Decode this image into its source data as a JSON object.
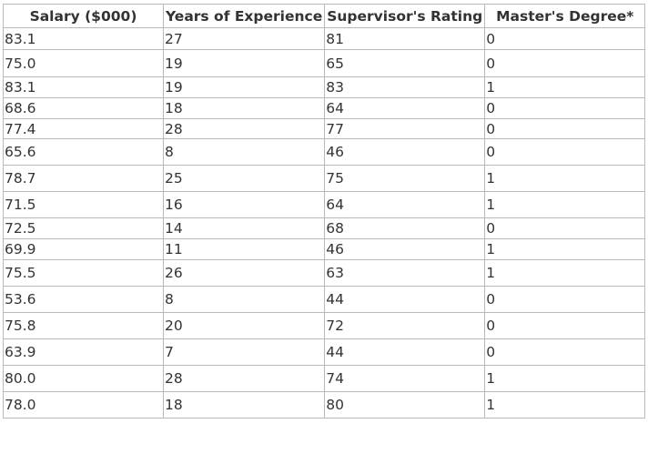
{
  "table": {
    "headers": [
      "Salary ($000)",
      "Years of Experience",
      "Supervisor's Rating",
      "Master's Degree*"
    ],
    "rows": [
      [
        "83.1",
        "27",
        "81",
        "0"
      ],
      [
        "75.0",
        "19",
        "65",
        "0"
      ],
      [
        "83.1",
        "19",
        "83",
        "1"
      ],
      [
        "68.6",
        "18",
        "64",
        "0"
      ],
      [
        "77.4",
        "28",
        "77",
        "0"
      ],
      [
        "65.6",
        "8",
        "46",
        "0"
      ],
      [
        "78.7",
        "25",
        "75",
        "1"
      ],
      [
        "71.5",
        "16",
        "64",
        "1"
      ],
      [
        "72.5",
        "14",
        "68",
        "0"
      ],
      [
        "69.9",
        "11",
        "46",
        "1"
      ],
      [
        "75.5",
        "26",
        "63",
        "1"
      ],
      [
        "53.6",
        "8",
        "44",
        "0"
      ],
      [
        "75.8",
        "20",
        "72",
        "0"
      ],
      [
        "63.9",
        "7",
        "44",
        "0"
      ],
      [
        "80.0",
        "28",
        "74",
        "1"
      ],
      [
        "78.0",
        "18",
        "80",
        "1"
      ]
    ]
  }
}
